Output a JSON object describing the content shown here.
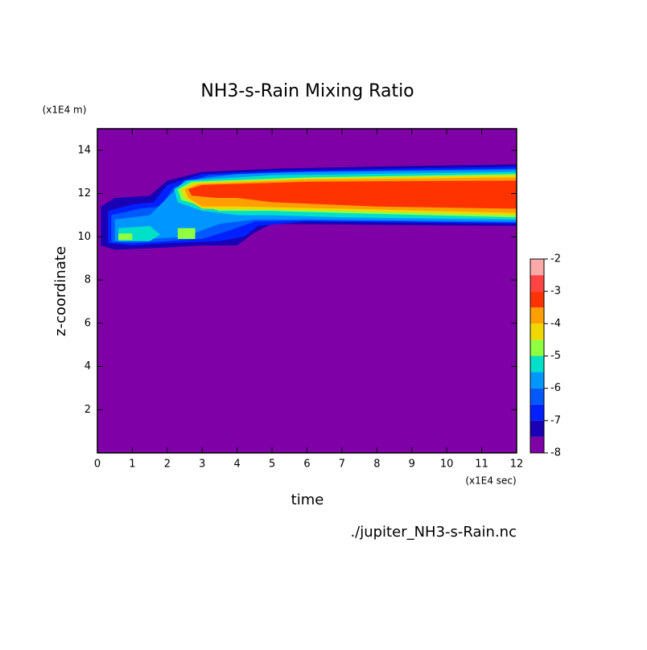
{
  "chart_data": {
    "type": "contour",
    "title": "NH3-s-Rain Mixing Ratio",
    "x_label": "time",
    "y_label": "z-coordinate",
    "x_unit": "(x1E4 sec)",
    "y_unit": "(x1E4 m)",
    "source": "./jupiter_NH3-s-Rain.nc",
    "xlim": [
      0,
      12
    ],
    "ylim": [
      0,
      15
    ],
    "xticks": [
      0,
      1,
      2,
      3,
      4,
      5,
      6,
      7,
      8,
      9,
      10,
      11,
      12
    ],
    "yticks": [
      2,
      4,
      6,
      8,
      10,
      12,
      14
    ],
    "levels": [
      -8,
      -7.5,
      -7,
      -6.5,
      -6,
      -5.5,
      -5,
      -4.5,
      -4,
      -3.5,
      -3,
      -2.5,
      -2
    ],
    "colorbar_ticks": [
      -8,
      -7,
      -6,
      -5,
      -4,
      -3,
      -2
    ],
    "colors": [
      "#7f00a6",
      "#1a00b4",
      "#0020ff",
      "#0058ff",
      "#0096ff",
      "#00e0c8",
      "#90ff40",
      "#f0d800",
      "#ffa000",
      "#ff3300",
      "#ff4444",
      "#ffaaaa"
    ],
    "regions": [
      {
        "level": 1,
        "points": [
          [
            0.1,
            9.6
          ],
          [
            0.1,
            11.4
          ],
          [
            0.5,
            11.8
          ],
          [
            1.5,
            11.9
          ],
          [
            2,
            12.6
          ],
          [
            3,
            13
          ],
          [
            5,
            13.15
          ],
          [
            8,
            13.25
          ],
          [
            12,
            13.35
          ],
          [
            12,
            10.5
          ],
          [
            8,
            10.55
          ],
          [
            5,
            10.6
          ],
          [
            4.5,
            10.2
          ],
          [
            4,
            9.6
          ],
          [
            3,
            9.6
          ],
          [
            2,
            9.5
          ],
          [
            0.5,
            9.4
          ]
        ]
      },
      {
        "level": 2,
        "points": [
          [
            0.3,
            9.7
          ],
          [
            0.3,
            11.2
          ],
          [
            1,
            11.5
          ],
          [
            1.6,
            11.6
          ],
          [
            2,
            12.4
          ],
          [
            3,
            12.9
          ],
          [
            5,
            13.05
          ],
          [
            12,
            13.25
          ],
          [
            12,
            10.6
          ],
          [
            6,
            10.7
          ],
          [
            4.6,
            10.5
          ],
          [
            4.2,
            10
          ],
          [
            3.5,
            9.8
          ],
          [
            2,
            9.7
          ],
          [
            1,
            9.6
          ]
        ]
      },
      {
        "level": 3,
        "points": [
          [
            0.4,
            9.75
          ],
          [
            0.4,
            11
          ],
          [
            1.2,
            11.3
          ],
          [
            1.8,
            11.4
          ],
          [
            2.2,
            12.3
          ],
          [
            3.2,
            12.85
          ],
          [
            5.5,
            13
          ],
          [
            12,
            13.15
          ],
          [
            12,
            10.65
          ],
          [
            6,
            10.75
          ],
          [
            4.5,
            10.7
          ],
          [
            3.8,
            10.3
          ],
          [
            3,
            9.9
          ],
          [
            2,
            9.8
          ],
          [
            1,
            9.7
          ]
        ]
      },
      {
        "level": 4,
        "points": [
          [
            0.5,
            9.8
          ],
          [
            0.5,
            10.8
          ],
          [
            1.5,
            11
          ],
          [
            2,
            11.8
          ],
          [
            2.5,
            12.6
          ],
          [
            4,
            12.9
          ],
          [
            6,
            13
          ],
          [
            12,
            13.1
          ],
          [
            12,
            10.7
          ],
          [
            6,
            10.8
          ],
          [
            4.5,
            10.8
          ],
          [
            3.5,
            10.6
          ],
          [
            2.5,
            10
          ],
          [
            1.5,
            9.9
          ]
        ]
      },
      {
        "level": 5,
        "points": [
          [
            2.2,
            12.2
          ],
          [
            2.6,
            12.6
          ],
          [
            5,
            12.85
          ],
          [
            12,
            13.0
          ],
          [
            12,
            10.8
          ],
          [
            7,
            10.9
          ],
          [
            5,
            11
          ],
          [
            4,
            11
          ],
          [
            3,
            11.2
          ],
          [
            2.3,
            11.6
          ]
        ]
      },
      {
        "level": 5,
        "points": [
          [
            0.6,
            9.8
          ],
          [
            0.6,
            10.4
          ],
          [
            1.5,
            10.5
          ],
          [
            1.8,
            10.1
          ],
          [
            1.5,
            9.8
          ]
        ]
      },
      {
        "level": 6,
        "points": [
          [
            2.3,
            12.2
          ],
          [
            2.7,
            12.55
          ],
          [
            6,
            12.75
          ],
          [
            12,
            12.9
          ],
          [
            12,
            10.9
          ],
          [
            7,
            11.1
          ],
          [
            5,
            11.2
          ],
          [
            3.5,
            11.2
          ],
          [
            2.4,
            11.7
          ]
        ]
      },
      {
        "level": 6,
        "points": [
          [
            0.6,
            9.85
          ],
          [
            0.6,
            10.15
          ],
          [
            1,
            10.15
          ],
          [
            1,
            9.85
          ]
        ]
      },
      {
        "level": 6,
        "points": [
          [
            2.3,
            9.9
          ],
          [
            2.3,
            10.4
          ],
          [
            2.8,
            10.4
          ],
          [
            2.8,
            9.9
          ]
        ]
      },
      {
        "level": 7,
        "points": [
          [
            2.4,
            12.2
          ],
          [
            2.8,
            12.5
          ],
          [
            6,
            12.7
          ],
          [
            12,
            12.85
          ],
          [
            12,
            11.0
          ],
          [
            7,
            11.2
          ],
          [
            3,
            11.3
          ],
          [
            2.5,
            11.8
          ]
        ]
      },
      {
        "level": 8,
        "points": [
          [
            2.5,
            12.2
          ],
          [
            2.9,
            12.45
          ],
          [
            6,
            12.65
          ],
          [
            12,
            12.75
          ],
          [
            12,
            11.1
          ],
          [
            7,
            11.3
          ],
          [
            4,
            11.4
          ],
          [
            3,
            11.4
          ],
          [
            2.6,
            11.8
          ]
        ]
      },
      {
        "level": 9,
        "points": [
          [
            2.6,
            12.2
          ],
          [
            3,
            12.4
          ],
          [
            6,
            12.55
          ],
          [
            12,
            12.6
          ],
          [
            12,
            11.3
          ],
          [
            8,
            11.4
          ],
          [
            5,
            11.6
          ],
          [
            4,
            11.8
          ],
          [
            3.4,
            11.8
          ],
          [
            2.7,
            11.9
          ]
        ]
      }
    ]
  }
}
